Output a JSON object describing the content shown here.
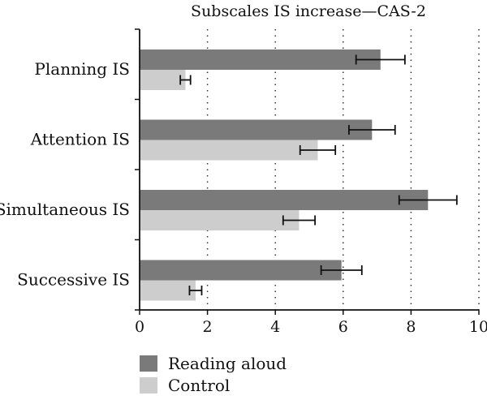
{
  "chart_data": {
    "type": "bar",
    "orientation": "horizontal",
    "title": "Subscales IS increase—CAS-2",
    "xlabel": "",
    "ylabel": "",
    "categories": [
      "Planning IS",
      "Attention IS",
      "Simultaneous IS",
      "Successive IS"
    ],
    "series": [
      {
        "name": "Reading aloud",
        "color": "#7a7a7a",
        "values": [
          7.1,
          6.85,
          8.5,
          5.95
        ],
        "errors": [
          0.72,
          0.68,
          0.85,
          0.6
        ]
      },
      {
        "name": "Control",
        "color": "#cdcdcd",
        "values": [
          1.35,
          5.25,
          4.7,
          1.65
        ],
        "errors": [
          0.15,
          0.52,
          0.47,
          0.18
        ]
      }
    ],
    "xlim": [
      0,
      10
    ],
    "xticks": [
      "0",
      "2",
      "4",
      "6",
      "8",
      "10"
    ],
    "grid": "vertical dotted",
    "legend_position": "bottom-left"
  }
}
